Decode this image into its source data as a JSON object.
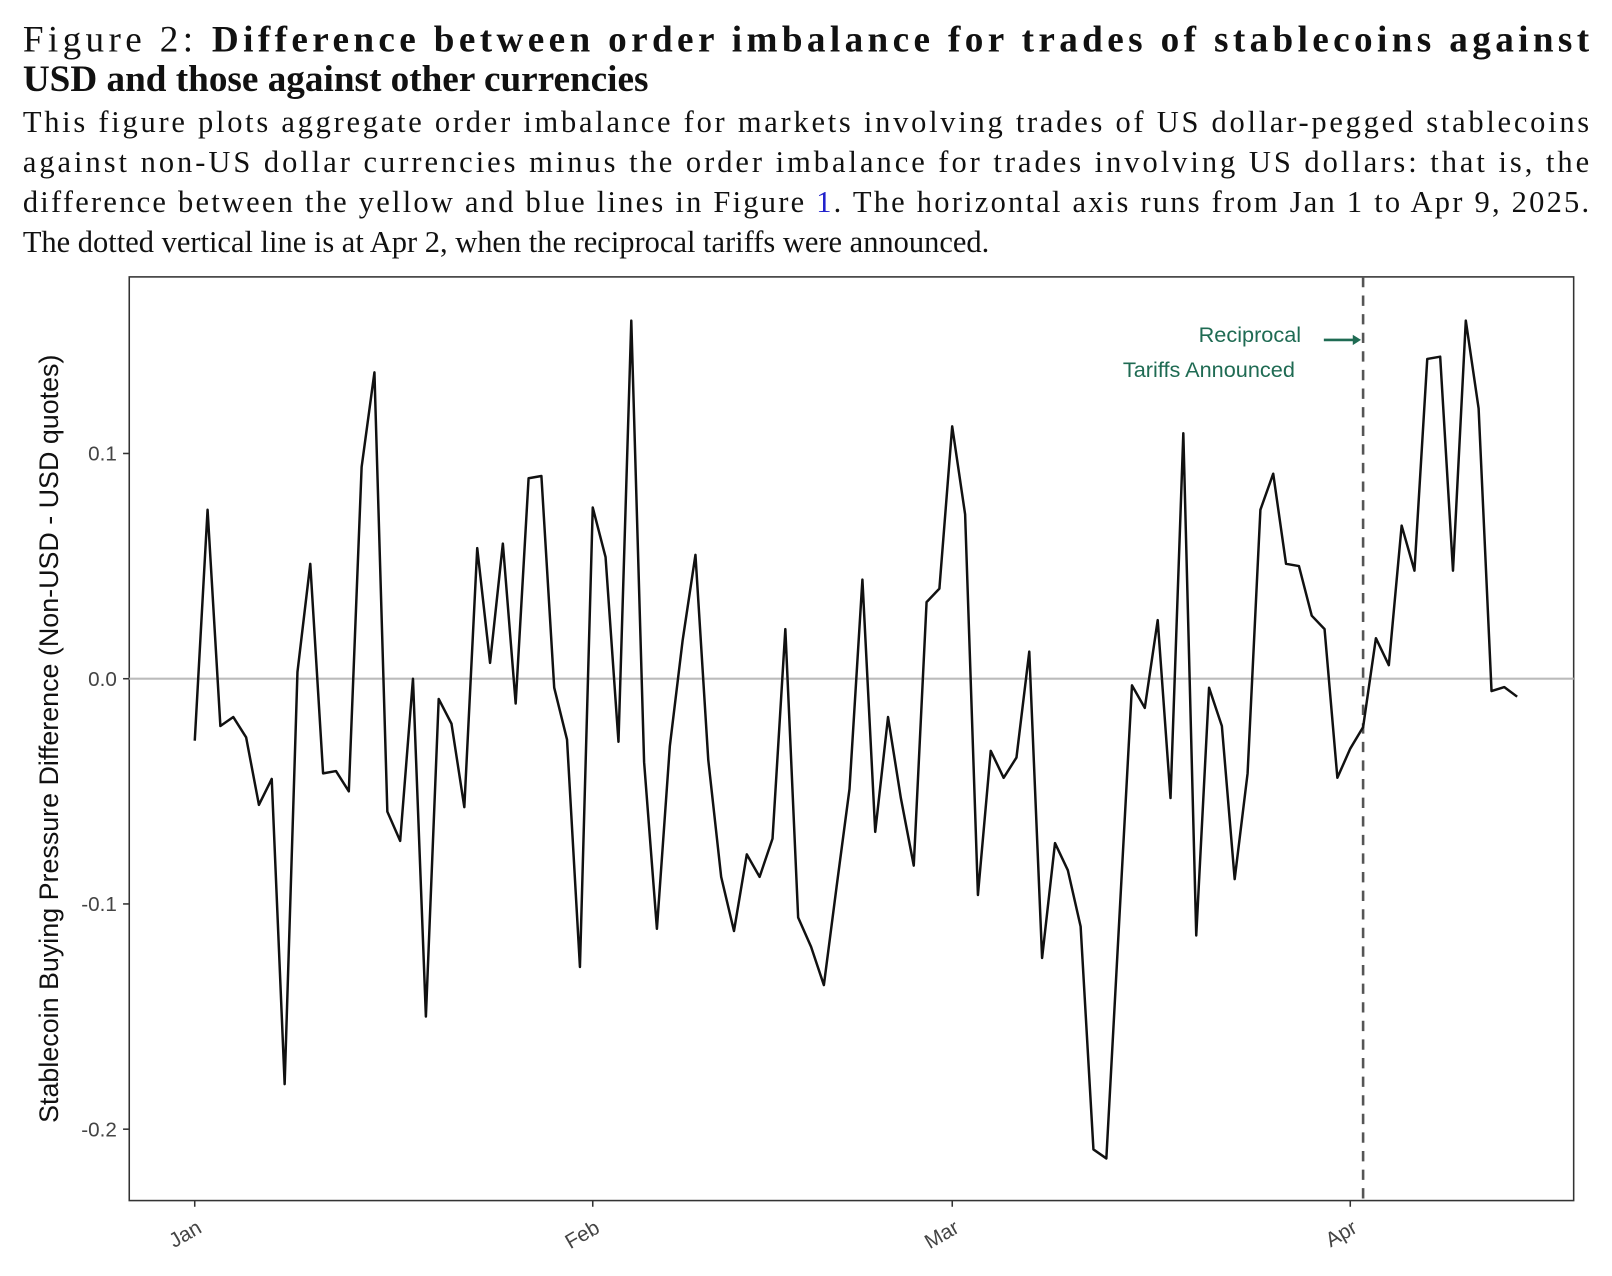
{
  "figure": {
    "label": "Figure 2:",
    "title_lines": [
      "Difference between order imbalance for trades of stablecoins against",
      "USD and those against other currencies"
    ],
    "caption_lines": [
      {
        "text": "This figure plots aggregate order imbalance for markets involving trades of US dollar-pegged stablecoins"
      },
      {
        "text": "against non-US dollar currencies minus the order imbalance for trades involving US dollars: that is, the"
      },
      {
        "before": "difference between the yellow and blue lines in Figure ",
        "ref": "1",
        "after": ". The horizontal axis runs from Jan 1 to Apr 9, 2025."
      },
      {
        "text": "The dotted vertical line is at Apr 2, when the reciprocal tariffs were announced."
      }
    ]
  },
  "chart_data": {
    "type": "line",
    "ylabel": "Stablecoin Buying Pressure Difference (Non-USD - USD quotes)",
    "categories": [
      "Jan",
      null,
      null,
      null,
      null,
      null,
      null,
      null,
      null,
      null,
      null,
      null,
      null,
      null,
      null,
      null,
      null,
      null,
      null,
      null,
      null,
      null,
      null,
      null,
      null,
      null,
      null,
      null,
      null,
      null,
      null,
      "Feb",
      null,
      null,
      null,
      null,
      null,
      null,
      null,
      null,
      null,
      null,
      null,
      null,
      null,
      null,
      null,
      null,
      null,
      null,
      null,
      null,
      null,
      null,
      null,
      null,
      null,
      null,
      null,
      "Mar",
      null,
      null,
      null,
      null,
      null,
      null,
      null,
      null,
      null,
      null,
      null,
      null,
      null,
      null,
      null,
      null,
      null,
      null,
      null,
      null,
      null,
      null,
      null,
      null,
      null,
      null,
      null,
      null,
      null,
      null,
      "Apr",
      null,
      null,
      null,
      null,
      null,
      null,
      null,
      null,
      null,
      null,
      null,
      null,
      null
    ],
    "values": [
      -0.0275,
      0.075,
      -0.021,
      -0.017,
      -0.026,
      -0.056,
      -0.0445,
      -0.18,
      0.003,
      0.051,
      -0.042,
      -0.041,
      -0.05,
      0.094,
      0.136,
      -0.059,
      -0.072,
      0,
      -0.15,
      -0.009,
      -0.02,
      -0.057,
      0.058,
      0.007,
      0.06,
      -0.011,
      0.089,
      0.09,
      -0.004,
      -0.027,
      -0.128,
      0.076,
      0.054,
      -0.028,
      0.159,
      -0.037,
      -0.111,
      -0.03,
      0.017,
      0.055,
      -0.036,
      -0.088,
      -0.112,
      -0.078,
      -0.088,
      -0.071,
      0.022,
      -0.106,
      -0.119,
      -0.136,
      -0.092,
      -0.049,
      0.044,
      -0.068,
      -0.017,
      -0.053,
      -0.083,
      0.034,
      0.04,
      0.112,
      0.073,
      -0.096,
      -0.032,
      -0.044,
      -0.035,
      0.012,
      -0.124,
      -0.073,
      -0.085,
      -0.11,
      -0.209,
      -0.213,
      -0.108,
      -0.003,
      -0.013,
      0.026,
      -0.053,
      0.109,
      -0.114,
      -0.004,
      -0.021,
      -0.089,
      -0.042,
      0.075,
      0.091,
      0.051,
      0.05,
      0.028,
      0.022,
      -0.044,
      -0.031,
      -0.0215,
      0.018,
      0.006,
      0.068,
      0.048,
      0.142,
      0.143,
      0.048,
      0.159,
      0.12,
      -0.0055,
      -0.0037,
      -0.008
    ],
    "color": "#111111",
    "ylim": [
      -0.2317,
      0.1784
    ],
    "yticks": [
      {
        "value": -0.2,
        "label": "-0.2"
      },
      {
        "value": -0.1,
        "label": "-0.1"
      },
      {
        "value": 0,
        "label": "0.0"
      },
      {
        "value": 0.1,
        "label": "0.1"
      }
    ],
    "hline": 0,
    "hline_color": "#bbbbbb",
    "annotation": {
      "text": [
        "Reciprocal",
        "Tariffs Announced"
      ],
      "index": 91,
      "color": "#1f6b53",
      "line_color": "#555555"
    }
  }
}
